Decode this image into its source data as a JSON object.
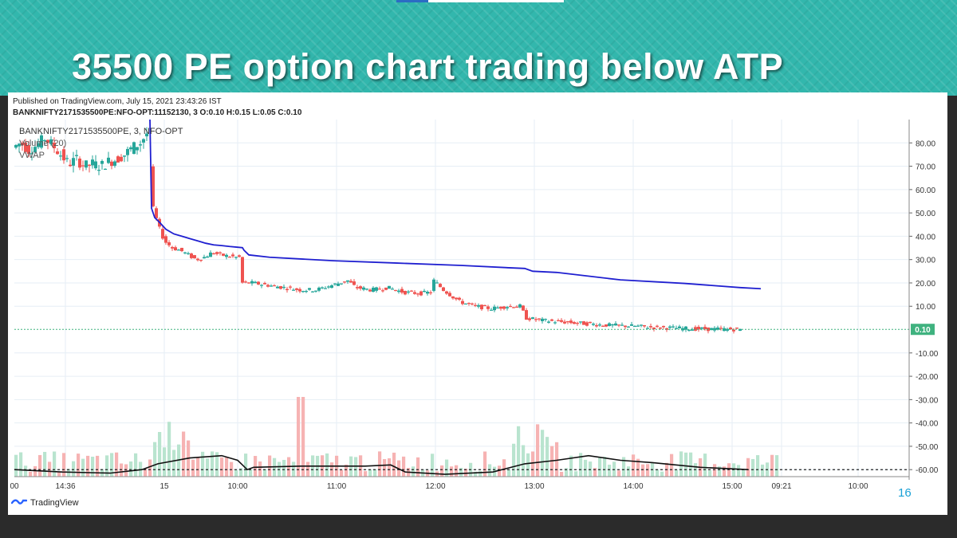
{
  "slide": {
    "title": "35500 PE option chart trading below ATP",
    "page_number": "16"
  },
  "chart_header": {
    "published": "Published on TradingView.com, July 15, 2021 23:43:26 IST",
    "ohlc": "BANKNIFTY2171535500PE:NFO-OPT:11152130, 3 O:0.10 H:0.15 L:0.05 C:0.10",
    "symbol_line": "BANKNIFTY2171535500PE, 3, NFO-OPT",
    "indicator_volume": "Volume (20)",
    "indicator_vwap": "VWAP",
    "logo_text": "TradingView"
  },
  "colors": {
    "up": "#26a69a",
    "down": "#ef5350",
    "vwap": "#1f1fd0",
    "volume_ma": "#111111",
    "last_price_badge": "#3fb27f",
    "accent_teal": "#32b7ad"
  },
  "chart_data": {
    "type": "candlestick",
    "ylim": [
      -63,
      90
    ],
    "y_ticks": [
      "80.00",
      "70.00",
      "60.00",
      "50.00",
      "40.00",
      "30.00",
      "20.00",
      "10.00",
      "-10.00",
      "-20.00",
      "-30.00",
      "-40.00",
      "-50.00",
      "-60.00"
    ],
    "x_ticks": [
      "00",
      "14:36",
      "15",
      "10:00",
      "11:00",
      "12:00",
      "13:00",
      "14:00",
      "15:00",
      "09:21",
      "10:00"
    ],
    "last_price": "0.10",
    "vwap": [
      [
        85,
        90
      ],
      [
        86,
        52
      ],
      [
        88,
        48
      ],
      [
        91,
        46
      ],
      [
        95,
        43
      ],
      [
        100,
        41
      ],
      [
        105,
        40
      ],
      [
        110,
        39
      ],
      [
        115,
        38
      ],
      [
        120,
        37
      ],
      [
        125,
        36.3
      ],
      [
        130,
        36
      ],
      [
        135,
        35.6
      ],
      [
        140,
        35.3
      ],
      [
        143,
        35.1
      ],
      [
        144,
        34
      ],
      [
        147,
        32
      ],
      [
        160,
        31
      ],
      [
        200,
        29.5
      ],
      [
        240,
        28.5
      ],
      [
        280,
        27.5
      ],
      [
        310,
        26.5
      ],
      [
        320,
        26.2
      ],
      [
        325,
        25
      ],
      [
        340,
        24.5
      ],
      [
        380,
        21.3
      ],
      [
        420,
        19.8
      ],
      [
        455,
        18
      ],
      [
        468,
        17.5
      ]
    ],
    "price_path": [
      [
        85,
        90
      ],
      [
        86,
        70
      ],
      [
        88,
        52
      ],
      [
        91,
        45
      ],
      [
        95,
        38
      ],
      [
        100,
        35
      ],
      [
        105,
        34
      ],
      [
        110,
        32
      ],
      [
        115,
        30
      ],
      [
        120,
        31
      ],
      [
        125,
        33
      ],
      [
        130,
        32
      ],
      [
        135,
        31.5
      ],
      [
        140,
        31
      ],
      [
        143,
        31
      ],
      [
        144,
        20
      ],
      [
        150,
        20
      ],
      [
        160,
        19
      ],
      [
        170,
        18
      ],
      [
        180,
        17
      ],
      [
        190,
        17
      ],
      [
        200,
        19
      ],
      [
        205,
        20
      ],
      [
        210,
        21
      ],
      [
        215,
        18
      ],
      [
        225,
        17
      ],
      [
        235,
        18
      ],
      [
        245,
        16
      ],
      [
        255,
        15.5
      ],
      [
        262,
        16
      ],
      [
        264,
        21
      ],
      [
        270,
        17
      ],
      [
        280,
        12
      ],
      [
        290,
        10
      ],
      [
        300,
        9
      ],
      [
        310,
        10
      ],
      [
        318,
        10
      ],
      [
        322,
        5
      ],
      [
        330,
        4
      ],
      [
        340,
        3.5
      ],
      [
        350,
        3
      ],
      [
        360,
        2.5
      ],
      [
        370,
        2
      ],
      [
        380,
        1.7
      ],
      [
        390,
        1.5
      ],
      [
        400,
        1
      ],
      [
        410,
        0.8
      ],
      [
        420,
        0.5
      ],
      [
        430,
        0.3
      ],
      [
        440,
        0.2
      ],
      [
        455,
        0.1
      ]
    ],
    "pre_gap_path": [
      [
        0,
        78
      ],
      [
        5,
        80
      ],
      [
        10,
        77
      ],
      [
        15,
        79
      ],
      [
        20,
        82
      ],
      [
        25,
        79
      ],
      [
        30,
        75
      ],
      [
        35,
        71
      ],
      [
        40,
        73
      ],
      [
        45,
        70
      ],
      [
        50,
        71
      ],
      [
        55,
        70
      ],
      [
        60,
        72
      ],
      [
        65,
        73
      ],
      [
        70,
        75
      ],
      [
        75,
        78
      ],
      [
        80,
        80
      ],
      [
        84,
        84
      ]
    ],
    "volume_ma_path": [
      [
        0,
        -60
      ],
      [
        30,
        -61
      ],
      [
        60,
        -61.5
      ],
      [
        80,
        -60
      ],
      [
        90,
        -57.5
      ],
      [
        110,
        -55
      ],
      [
        130,
        -54
      ],
      [
        140,
        -56
      ],
      [
        143,
        -58
      ],
      [
        146,
        -60
      ],
      [
        150,
        -59
      ],
      [
        180,
        -58.5
      ],
      [
        220,
        -58.5
      ],
      [
        236,
        -58
      ],
      [
        245,
        -61
      ],
      [
        270,
        -62
      ],
      [
        300,
        -61
      ],
      [
        320,
        -57.5
      ],
      [
        340,
        -56
      ],
      [
        360,
        -54
      ],
      [
        380,
        -56
      ],
      [
        400,
        -57
      ],
      [
        430,
        -59
      ],
      [
        460,
        -60
      ]
    ]
  }
}
